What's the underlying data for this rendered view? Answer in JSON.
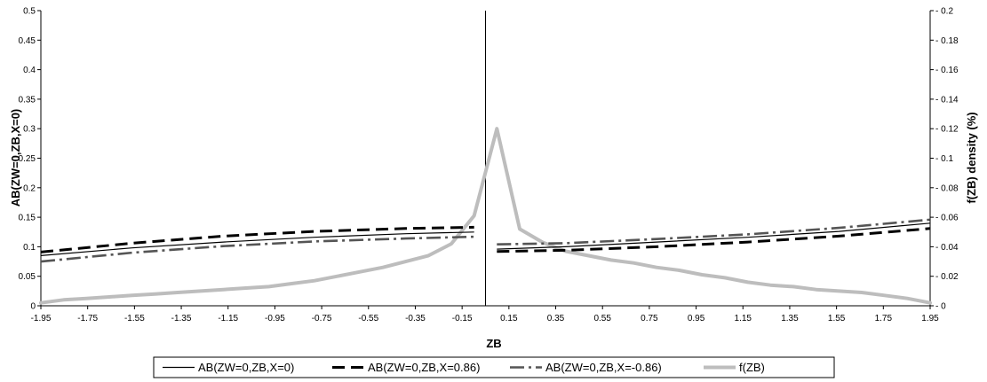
{
  "chart_data": {
    "type": "line",
    "xlabel": "ZB",
    "ylabel_left": "AB(ZW=0,ZB,X=0)",
    "ylabel_right": "f(ZB) density (%)",
    "x_ticks": [
      "-1.95",
      "-1.75",
      "-1.55",
      "-1.35",
      "-1.15",
      "-0.95",
      "-0.75",
      "-0.55",
      "-0.35",
      "-0.15",
      "0.15",
      "0.35",
      "0.55",
      "0.75",
      "0.95",
      "1.15",
      "1.35",
      "1.55",
      "1.75",
      "1.95"
    ],
    "y_left_ticks": [
      "0",
      "0.05",
      "0.1",
      "0.15",
      "0.2",
      "0.25",
      "0.3",
      "0.35",
      "0.4",
      "0.45",
      "0.5"
    ],
    "y_right_ticks": [
      "0",
      "0.02",
      "0.04",
      "0.06",
      "0.08",
      "0.1",
      "0.12",
      "0.14",
      "0.16",
      "0.18",
      "0.2"
    ],
    "ylim_left": [
      0,
      0.5
    ],
    "ylim_right": [
      0,
      0.2
    ],
    "xlim": [
      -1.95,
      1.95
    ],
    "vertical_line_x": 0,
    "grid": false,
    "legend_position": "bottom",
    "series": [
      {
        "name": "AB(ZW=0,ZB,X=0)",
        "axis": "left",
        "color": "#000000",
        "style": "solid-thin",
        "segments": [
          {
            "x": [
              -1.95,
              -1.55,
              -1.15,
              -0.75,
              -0.35,
              -0.05
            ],
            "y": [
              0.085,
              0.098,
              0.108,
              0.116,
              0.122,
              0.125
            ]
          },
          {
            "x": [
              0.05,
              0.35,
              0.75,
              1.15,
              1.55,
              1.95
            ],
            "y": [
              0.096,
              0.1,
              0.108,
              0.116,
              0.126,
              0.14
            ]
          }
        ]
      },
      {
        "name": "AB(ZW=0,ZB,X=0.86)",
        "axis": "left",
        "color": "#000000",
        "style": "dashed-thick",
        "segments": [
          {
            "x": [
              -1.95,
              -1.55,
              -1.15,
              -0.75,
              -0.35,
              -0.05
            ],
            "y": [
              0.091,
              0.106,
              0.118,
              0.126,
              0.131,
              0.133
            ]
          },
          {
            "x": [
              0.05,
              0.35,
              0.75,
              1.15,
              1.55,
              1.95
            ],
            "y": [
              0.092,
              0.094,
              0.1,
              0.108,
              0.118,
              0.131
            ]
          }
        ]
      },
      {
        "name": "AB(ZW=0,ZB,X=-0.86)",
        "axis": "left",
        "color": "#555555",
        "style": "dashdot",
        "segments": [
          {
            "x": [
              -1.95,
              -1.55,
              -1.15,
              -0.75,
              -0.35,
              -0.05
            ],
            "y": [
              0.075,
              0.09,
              0.101,
              0.109,
              0.114,
              0.117
            ]
          },
          {
            "x": [
              0.05,
              0.35,
              0.75,
              1.15,
              1.55,
              1.95
            ],
            "y": [
              0.104,
              0.106,
              0.113,
              0.121,
              0.132,
              0.146
            ]
          }
        ]
      },
      {
        "name": "f(ZB)",
        "axis": "right",
        "color": "#bdbdbd",
        "style": "solid-wide",
        "segments": [
          {
            "x": [
              -1.95,
              -1.85,
              -1.75,
              -1.65,
              -1.55,
              -1.45,
              -1.35,
              -1.25,
              -1.15,
              -1.05,
              -0.95,
              -0.85,
              -0.75,
              -0.65,
              -0.55,
              -0.45,
              -0.35,
              -0.25,
              -0.15,
              -0.05,
              0.05,
              0.15,
              0.25,
              0.35,
              0.45,
              0.55,
              0.65,
              0.75,
              0.85,
              0.95,
              1.05,
              1.15,
              1.25,
              1.35,
              1.45,
              1.55,
              1.65,
              1.75,
              1.85,
              1.95
            ],
            "y": [
              0.002,
              0.004,
              0.005,
              0.006,
              0.007,
              0.008,
              0.009,
              0.01,
              0.011,
              0.012,
              0.013,
              0.015,
              0.017,
              0.02,
              0.023,
              0.026,
              0.03,
              0.034,
              0.042,
              0.061,
              0.12,
              0.052,
              0.043,
              0.037,
              0.034,
              0.031,
              0.029,
              0.026,
              0.024,
              0.021,
              0.019,
              0.016,
              0.014,
              0.013,
              0.011,
              0.01,
              0.009,
              0.007,
              0.005,
              0.002
            ]
          }
        ]
      }
    ]
  }
}
